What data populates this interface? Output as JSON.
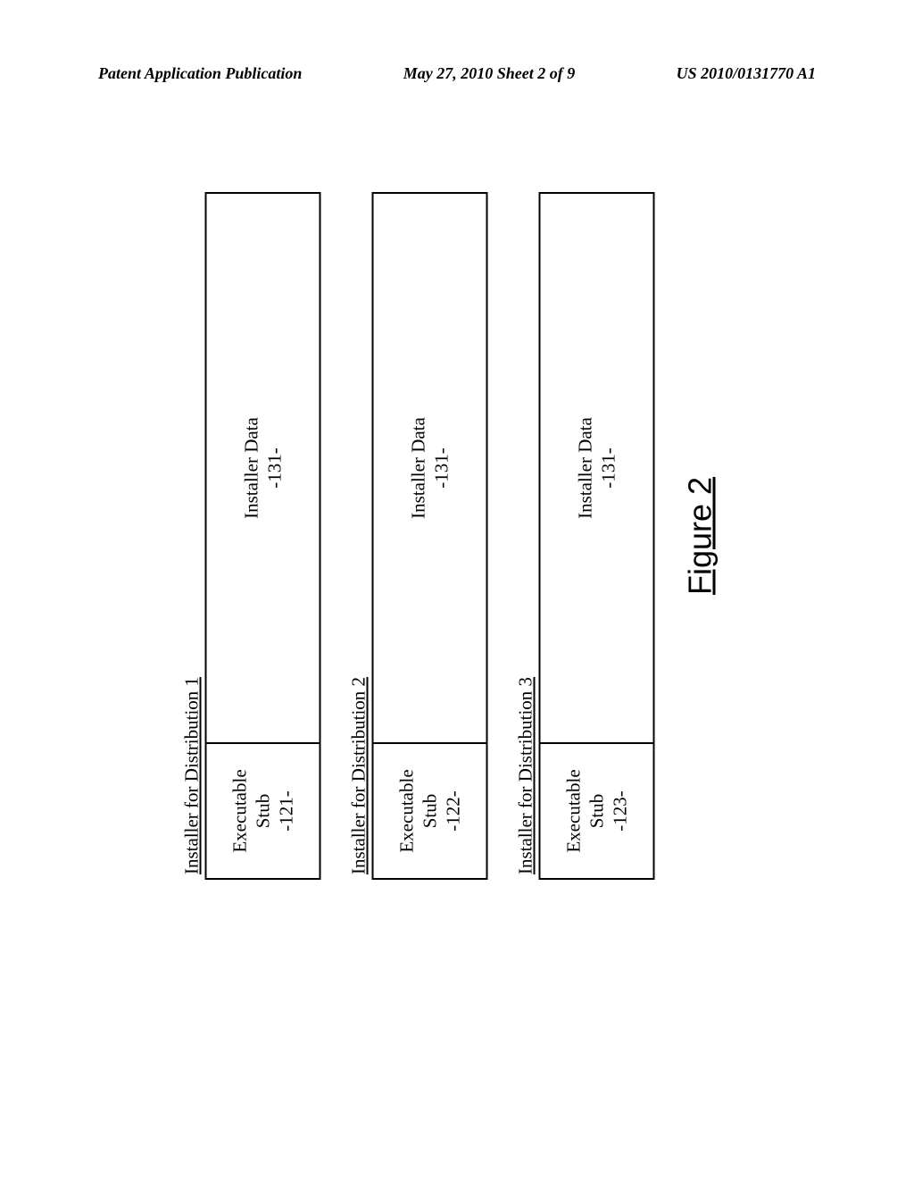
{
  "header": {
    "left": "Patent Application Publication",
    "center": "May 27, 2010  Sheet 2 of 9",
    "right": "US 2010/0131770 A1"
  },
  "figure": {
    "caption": "Figure 2",
    "installers": [
      {
        "title": "Installer for Distribution 1",
        "stub_line1": "Executable",
        "stub_line2": "Stub",
        "stub_ref": "-121-",
        "data_line1": "Installer Data",
        "data_ref": "-131-"
      },
      {
        "title": "Installer for Distribution 2",
        "stub_line1": "Executable",
        "stub_line2": "Stub",
        "stub_ref": "-122-",
        "data_line1": "Installer Data",
        "data_ref": "-131-"
      },
      {
        "title": "Installer for Distribution 3",
        "stub_line1": "Executable",
        "stub_line2": "Stub",
        "stub_ref": "-123-",
        "data_line1": "Installer Data",
        "data_ref": "-131-"
      }
    ]
  }
}
